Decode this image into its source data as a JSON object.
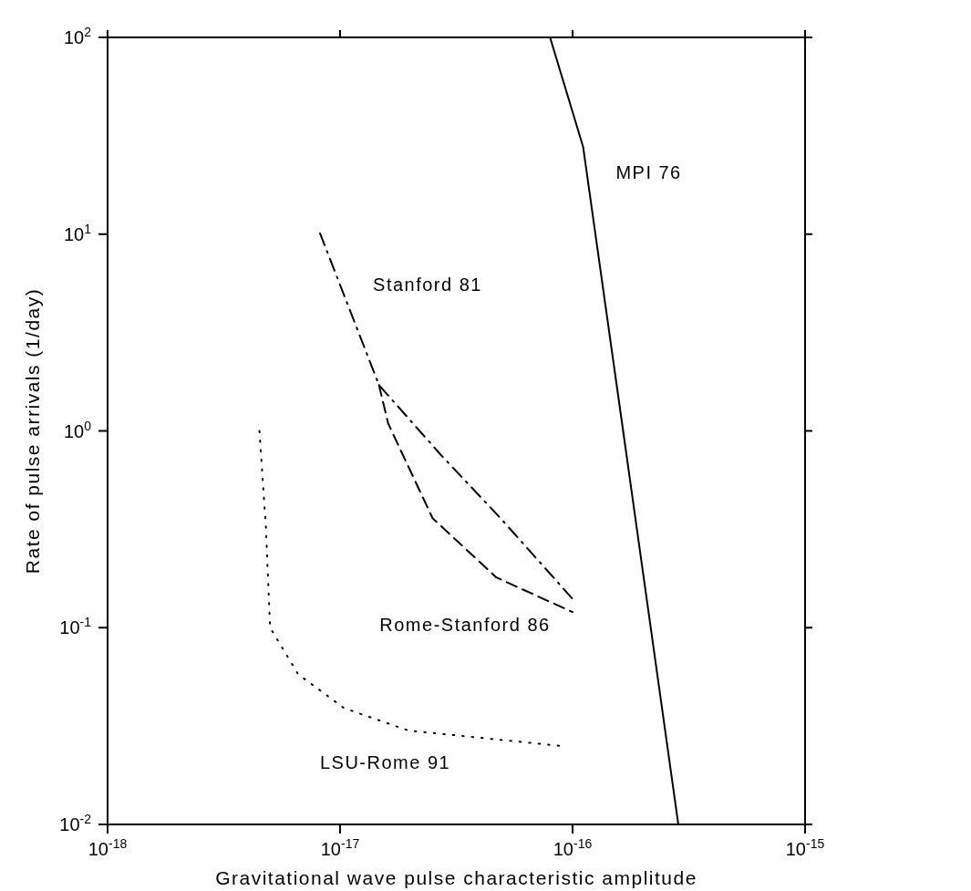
{
  "chart_data": {
    "type": "line",
    "xlabel": "Gravitational wave pulse characteristic amplitude",
    "ylabel": "Rate of pulse arrivals (1/day)",
    "log": "xy",
    "xlim": [
      1e-18,
      1e-15
    ],
    "ylim": [
      0.01,
      100
    ],
    "xticks": [
      {
        "value": 1e-18,
        "label": "10$^{-18}$"
      },
      {
        "value": 1e-17,
        "label": "10$^{-17}$"
      },
      {
        "value": 1e-16,
        "label": "10$^{-16}$"
      },
      {
        "value": 1e-15,
        "label": "10$^{-15}$"
      }
    ],
    "yticks": [
      {
        "value": 0.01,
        "label": "10$^{-2}$"
      },
      {
        "value": 0.1,
        "label": "10$^{-1}$"
      },
      {
        "value": 1,
        "label": "10$^{0}$"
      },
      {
        "value": 10,
        "label": "10$^{1}$"
      },
      {
        "value": 100,
        "label": "10$^{2}$"
      }
    ],
    "marker": "none",
    "series": [
      {
        "name": "MPI 76",
        "color": "#000000",
        "line_style": "solid",
        "x": [
          8e-17,
          1.11e-16,
          1.65e-16,
          2.85e-16
        ],
        "values": [
          100,
          27.8,
          1.0,
          0.01
        ]
      },
      {
        "name": "Stanford 81",
        "color": "#000000",
        "line_style": "dashdot",
        "x": [
          8.2e-18,
          1.47e-17,
          2.7e-17,
          4.9e-17,
          1e-16
        ],
        "values": [
          10.1,
          1.71,
          0.76,
          0.36,
          0.14
        ]
      },
      {
        "name": "Rome-Stanford 86",
        "color": "#000000",
        "line_style": "dashed",
        "x": [
          1.47e-17,
          1.61e-17,
          2.5e-17,
          4.7e-17,
          1e-16
        ],
        "values": [
          1.71,
          1.09,
          0.36,
          0.18,
          0.12
        ]
      },
      {
        "name": "LSU-Rome 91",
        "color": "#000000",
        "line_style": "dotted",
        "x": [
          4.5e-18,
          4.8e-18,
          5e-18,
          6.6e-18,
          1.04e-17,
          1.97e-17,
          9.1e-17
        ],
        "values": [
          1.0,
          0.32,
          0.1,
          0.058,
          0.039,
          0.03,
          0.025
        ]
      }
    ]
  }
}
